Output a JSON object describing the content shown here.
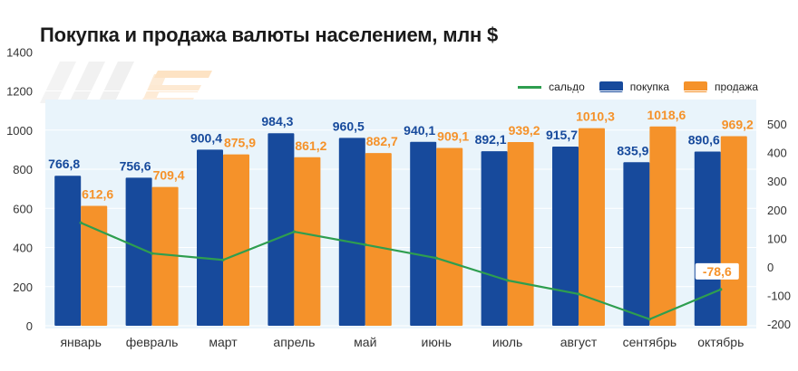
{
  "title": "Покупка и продажа валюты населением, млн $",
  "colors": {
    "buy": "#174a9c",
    "sell": "#f5922a",
    "saldo": "#2e9e4f",
    "plot_bg": "#e9f4fb"
  },
  "chart_data": {
    "type": "bar",
    "categories": [
      "январь",
      "февраль",
      "март",
      "апрель",
      "май",
      "июнь",
      "июль",
      "август",
      "сентябрь",
      "октябрь"
    ],
    "series": [
      {
        "name": "покупка",
        "type": "bar",
        "axis": "left",
        "values": [
          766.8,
          756.6,
          900.4,
          984.3,
          960.5,
          940.1,
          892.1,
          915.7,
          835.9,
          890.6
        ],
        "labels": [
          "766,8",
          "756,6",
          "900,4",
          "984,3",
          "960,5",
          "940,1",
          "892,1",
          "915,7",
          "835,9",
          "890,6"
        ]
      },
      {
        "name": "продажа",
        "type": "bar",
        "axis": "left",
        "values": [
          612.6,
          709.4,
          875.9,
          861.2,
          882.7,
          909.1,
          939.2,
          1010.3,
          1018.6,
          969.2
        ],
        "labels": [
          "612,6",
          "709,4",
          "875,9",
          "861,2",
          "882,7",
          "909,1",
          "939,2",
          "1010,3",
          "1018,6",
          "969,2"
        ]
      },
      {
        "name": "сальдо",
        "type": "line",
        "axis": "right",
        "values": [
          154.2,
          47.2,
          24.5,
          123.1,
          77.8,
          31.0,
          -47.1,
          -94.6,
          -182.7,
          -78.6
        ]
      }
    ],
    "saldo_label": "-78,6",
    "legend": {
      "placement": "top-right",
      "order": [
        "сальдо",
        "покупка",
        "продажа"
      ]
    },
    "y_left": {
      "min": 0,
      "max": 1400,
      "ticks": [
        "0",
        "200",
        "400",
        "600",
        "800",
        "1000",
        "1200",
        "1400"
      ]
    },
    "y_right": {
      "min": -200,
      "max": 500,
      "ticks": [
        "-200",
        "-100",
        "0",
        "100",
        "200",
        "300",
        "400",
        "500"
      ]
    },
    "grid": true
  }
}
